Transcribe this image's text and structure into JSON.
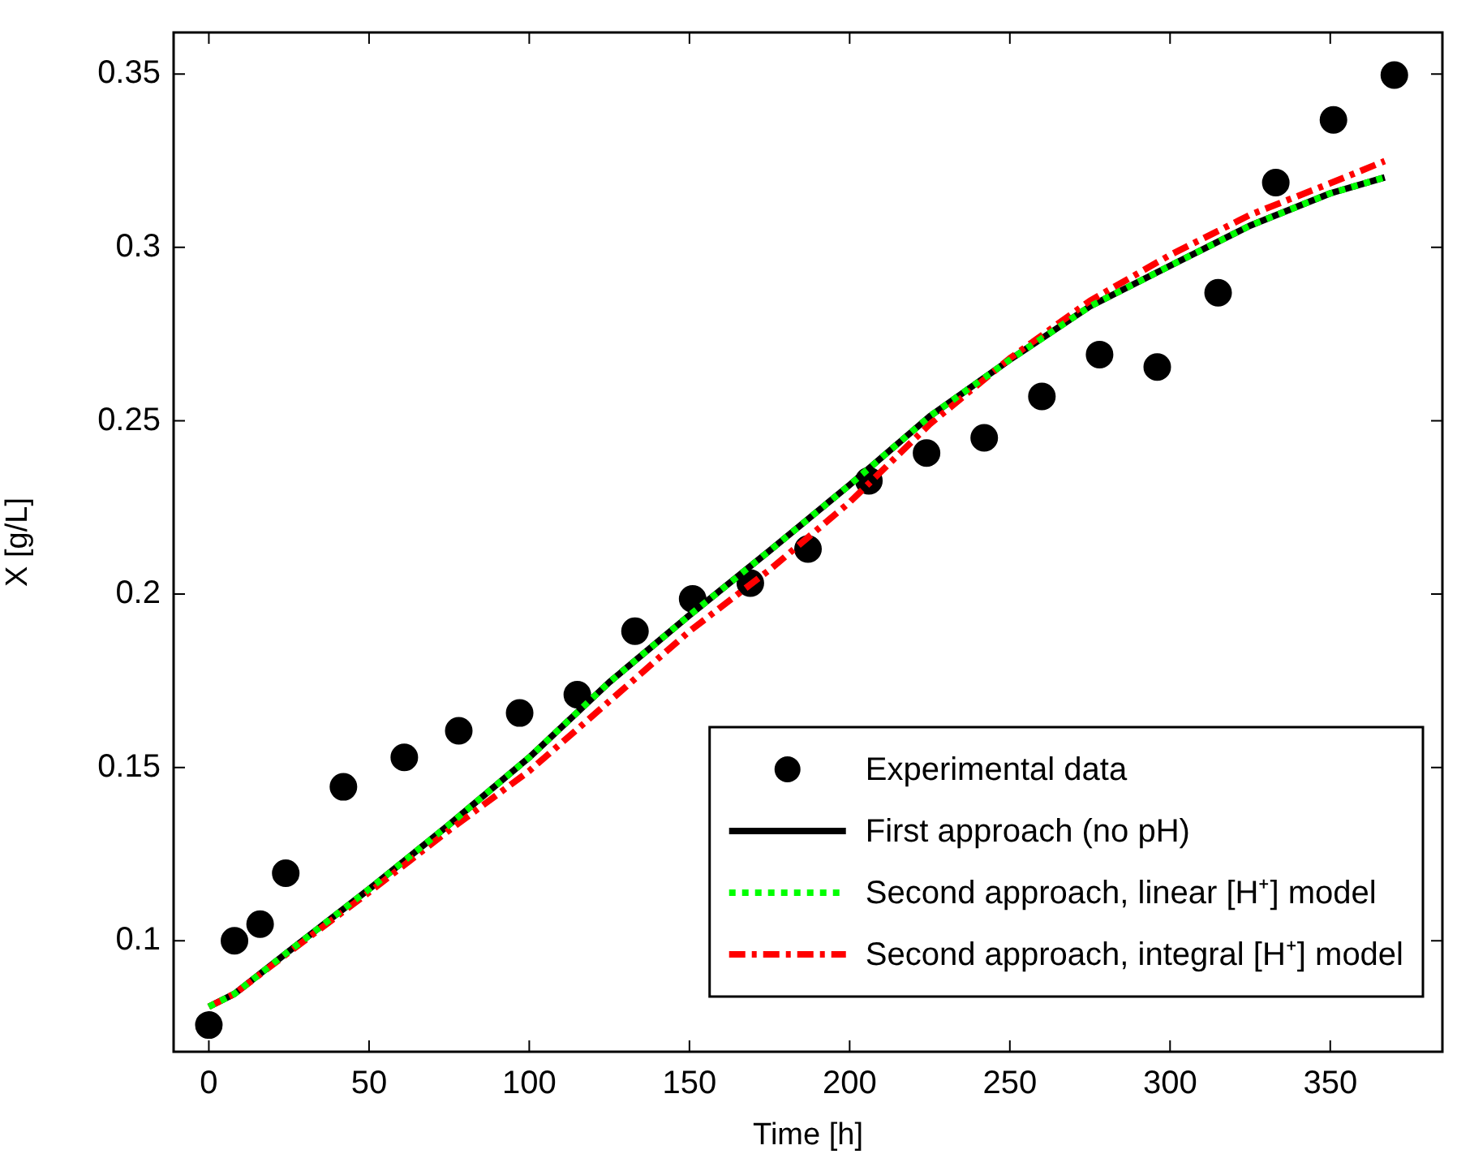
{
  "chart_data": {
    "type": "scatter",
    "xlabel": "Time [h]",
    "ylabel": "X [g/L]",
    "xlim": [
      -11,
      385
    ],
    "xticks": [
      0,
      50,
      100,
      150,
      200,
      250,
      300,
      350
    ],
    "ylim": [
      0.068,
      0.362
    ],
    "yticks": [
      0.1,
      0.15,
      0.2,
      0.25,
      0.3,
      0.35
    ],
    "grid": false,
    "legend": "bottom right",
    "series": [
      {
        "name": "Experimental data",
        "marker": "circle",
        "color": "#000000",
        "x": [
          0,
          8,
          16,
          24,
          42,
          61,
          78,
          97,
          115,
          133,
          151,
          169,
          187,
          206,
          224,
          242,
          260,
          278,
          296,
          315,
          333,
          351,
          370
        ],
        "values": [
          0.0757,
          0.1,
          0.1048,
          0.1195,
          0.1444,
          0.1529,
          0.1606,
          0.1657,
          0.171,
          0.1893,
          0.1986,
          0.2032,
          0.213,
          0.2327,
          0.2407,
          0.2451,
          0.257,
          0.2691,
          0.2655,
          0.2869,
          0.3187,
          0.3368,
          0.3497
        ]
      },
      {
        "name": "First approach (no pH)",
        "type": "line",
        "marker": "none",
        "line_style": "solid",
        "color": "#000000",
        "x": [
          0,
          8,
          24,
          50,
          75,
          100,
          125,
          150,
          175,
          200,
          225,
          250,
          275,
          300,
          325,
          350,
          367
        ],
        "values": [
          0.081,
          0.0847,
          0.0963,
          0.1149,
          0.1335,
          0.1529,
          0.1746,
          0.1939,
          0.2125,
          0.2315,
          0.2513,
          0.2676,
          0.283,
          0.2947,
          0.3063,
          0.3156,
          0.3202
        ]
      },
      {
        "name": "Second approach, linear [H⁺] model",
        "type": "line",
        "marker": "none",
        "line_style": "dotted",
        "color": "#00ff00",
        "x": [
          0,
          8,
          24,
          50,
          75,
          100,
          125,
          150,
          175,
          200,
          225,
          250,
          275,
          300,
          325,
          350,
          367
        ],
        "values": [
          0.081,
          0.0847,
          0.0963,
          0.1149,
          0.1335,
          0.1529,
          0.1746,
          0.1939,
          0.2125,
          0.2315,
          0.2513,
          0.2676,
          0.283,
          0.2947,
          0.3063,
          0.3156,
          0.3202
        ]
      },
      {
        "name": "Second approach, integral [H⁺] model",
        "type": "line",
        "marker": "none",
        "line_style": "dashed",
        "color": "#ff0000",
        "x": [
          0,
          8,
          24,
          50,
          75,
          100,
          125,
          150,
          175,
          200,
          225,
          250,
          275,
          300,
          325,
          350,
          367
        ],
        "values": [
          0.081,
          0.0847,
          0.096,
          0.114,
          0.1319,
          0.149,
          0.1691,
          0.1893,
          0.207,
          0.2265,
          0.249,
          0.268,
          0.2846,
          0.2978,
          0.3094,
          0.3185,
          0.3249
        ]
      }
    ]
  }
}
